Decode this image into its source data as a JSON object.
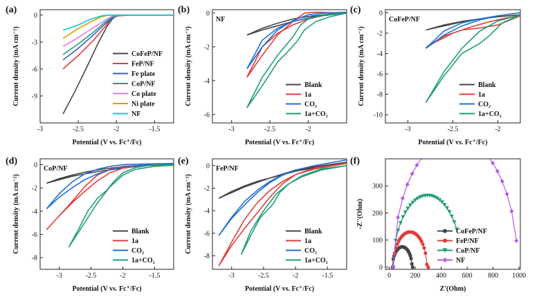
{
  "figure": {
    "panels": [
      "(a)",
      "(b)",
      "(c)",
      "(d)",
      "(e)",
      "(f)"
    ]
  },
  "chart_data": [
    {
      "panel": "(a)",
      "type": "line",
      "xlabel": "Potential (V vs. Fc⁺/Fc)",
      "ylabel": "Current density (mA cm⁻²)",
      "xlim": [
        -3.0,
        -1.25
      ],
      "ylim": [
        -12,
        0.6
      ],
      "xticks": [
        -3.0,
        -2.5,
        -2.0,
        -1.5
      ],
      "yticks": [
        0,
        -3,
        -6,
        -9
      ],
      "legend_position": "bottom-right",
      "series": [
        {
          "name": "CoFeP/NF",
          "color": "#444444",
          "x": [
            -2.7,
            -2.55,
            -2.4,
            -2.25,
            -2.12,
            -2.05,
            -2.0,
            -1.9,
            -1.7,
            -1.5,
            -1.25
          ],
          "y": [
            -11.0,
            -8.6,
            -6.0,
            -3.3,
            -1.2,
            -0.4,
            -0.1,
            0.0,
            0.0,
            0.0,
            0.0
          ]
        },
        {
          "name": "FeP/NF",
          "color": "#e03c3c",
          "x": [
            -2.7,
            -2.5,
            -2.3,
            -2.15,
            -2.07,
            -2.0,
            -1.8,
            -1.5,
            -1.25
          ],
          "y": [
            -6.0,
            -4.5,
            -2.8,
            -1.3,
            -0.4,
            -0.1,
            0.0,
            0.0,
            0.0
          ]
        },
        {
          "name": "Fe plate",
          "color": "#3a5bc7",
          "x": [
            -2.7,
            -2.5,
            -2.3,
            -2.15,
            -2.05,
            -1.95,
            -1.7,
            -1.25
          ],
          "y": [
            -5.0,
            -3.7,
            -2.2,
            -1.0,
            -0.3,
            0.0,
            0.0,
            0.0
          ]
        },
        {
          "name": "CoP/NF",
          "color": "#1f9e76",
          "x": [
            -2.7,
            -2.5,
            -2.3,
            -2.15,
            -2.05,
            -1.95,
            -1.7,
            -1.25
          ],
          "y": [
            -4.4,
            -3.2,
            -1.9,
            -0.8,
            -0.2,
            0.0,
            0.0,
            0.0
          ]
        },
        {
          "name": "Co plate",
          "color": "#e07be0",
          "x": [
            -2.7,
            -2.5,
            -2.3,
            -2.15,
            -2.05,
            -1.95,
            -1.7,
            -1.25
          ],
          "y": [
            -3.5,
            -2.5,
            -1.4,
            -0.6,
            -0.1,
            0.0,
            0.0,
            0.0
          ]
        },
        {
          "name": "Ni plate",
          "color": "#c9a600",
          "x": [
            -2.7,
            -2.5,
            -2.3,
            -2.2,
            -2.1,
            -2.0,
            -1.7,
            -1.25
          ],
          "y": [
            -2.6,
            -1.5,
            -0.6,
            -0.2,
            0.0,
            0.0,
            0.0,
            0.0
          ]
        },
        {
          "name": "NF",
          "color": "#19c3d6",
          "x": [
            -2.7,
            -2.5,
            -2.35,
            -2.2,
            -2.1,
            -2.0,
            -1.7,
            -1.25
          ],
          "y": [
            -1.7,
            -1.1,
            -0.5,
            -0.1,
            0.0,
            0.0,
            0.0,
            0.0
          ]
        }
      ]
    },
    {
      "panel": "(b)",
      "type": "line",
      "inner_label": "NF",
      "xlabel": "Potential (V vs. Fc⁺/Fc)",
      "ylabel": "Current density (mA cm⁻²)",
      "xlim": [
        -3.25,
        -1.5
      ],
      "ylim": [
        -6.5,
        0.2
      ],
      "xticks": [
        -3.0,
        -2.5,
        -2.0
      ],
      "yticks": [
        0,
        -2,
        -4,
        -6
      ],
      "legend_position": "bottom-right",
      "series": [
        {
          "name": "Blank",
          "color": "#444444",
          "x": [
            -2.8,
            -2.6,
            -2.4,
            -2.2,
            -2.0,
            -1.8,
            -1.5,
            -1.5,
            -1.8,
            -2.0,
            -2.2,
            -2.4,
            -2.6,
            -2.8
          ],
          "y": [
            -1.3,
            -0.9,
            -0.6,
            -0.35,
            -0.2,
            -0.1,
            0.05,
            0.05,
            -0.1,
            -0.3,
            -0.5,
            -0.75,
            -1.0,
            -1.3
          ]
        },
        {
          "name": "1a",
          "color": "#e03c3c",
          "x": [
            -2.8,
            -2.6,
            -2.4,
            -2.2,
            -2.05,
            -1.9,
            -1.5,
            -1.5,
            -1.8,
            -2.0,
            -2.2,
            -2.4,
            -2.6,
            -2.8
          ],
          "y": [
            -3.8,
            -2.5,
            -1.3,
            -0.5,
            0.0,
            0.05,
            0.0,
            0.0,
            -0.15,
            -0.35,
            -0.7,
            -1.2,
            -2.0,
            -3.8
          ]
        },
        {
          "name": "CO₂",
          "color": "#1f6ed4",
          "x": [
            -2.8,
            -2.6,
            -2.4,
            -2.2,
            -2.0,
            -1.8,
            -1.5,
            -1.5,
            -1.8,
            -2.0,
            -2.2,
            -2.4,
            -2.6,
            -2.8
          ],
          "y": [
            -3.3,
            -2.0,
            -1.0,
            -0.45,
            -0.1,
            0.0,
            0.05,
            0.05,
            -0.15,
            -0.3,
            -0.5,
            -0.9,
            -1.6,
            -3.3
          ]
        },
        {
          "name": "1a+CO₂",
          "color": "#1f9e76",
          "x": [
            -2.8,
            -2.6,
            -2.4,
            -2.25,
            -2.15,
            -2.05,
            -1.9,
            -1.7,
            -1.5,
            -1.5,
            -1.8,
            -2.0,
            -2.1,
            -2.2,
            -2.4,
            -2.6,
            -2.8
          ],
          "y": [
            -5.6,
            -4.3,
            -2.9,
            -2.2,
            -1.7,
            -1.0,
            -0.5,
            -0.2,
            0.0,
            0.0,
            -0.1,
            -0.35,
            -0.7,
            -1.4,
            -2.5,
            -3.8,
            -5.6
          ]
        }
      ]
    },
    {
      "panel": "(c)",
      "type": "line",
      "inner_label": "CoFeP/NF",
      "xlabel": "Potential (V vs. Fc⁺/Fc)",
      "ylabel": "Current density (mA cm⁻²)",
      "xlim": [
        -3.25,
        -1.75
      ],
      "ylim": [
        -10.8,
        0.3
      ],
      "xticks": [
        -3.0,
        -2.5,
        -2.0
      ],
      "yticks": [
        0,
        -2,
        -4,
        -6,
        -8,
        -10
      ],
      "legend_position": "bottom-right",
      "series": [
        {
          "name": "Blank",
          "color": "#444444",
          "x": [
            -2.8,
            -2.6,
            -2.4,
            -2.2,
            -2.0,
            -1.75,
            -1.75,
            -2.0,
            -2.2,
            -2.4,
            -2.6,
            -2.8
          ],
          "y": [
            -1.7,
            -1.2,
            -0.85,
            -0.6,
            -0.4,
            -0.2,
            -0.2,
            -0.4,
            -0.6,
            -0.9,
            -1.3,
            -1.7
          ]
        },
        {
          "name": "1a",
          "color": "#e03c3c",
          "x": [
            -2.8,
            -2.6,
            -2.4,
            -2.2,
            -2.0,
            -1.75,
            -1.75,
            -1.9,
            -2.1,
            -2.3,
            -2.5,
            -2.7,
            -2.8
          ],
          "y": [
            -3.4,
            -2.3,
            -1.7,
            -1.5,
            -1.2,
            -0.3,
            -0.3,
            -0.5,
            -0.9,
            -1.4,
            -2.0,
            -2.9,
            -3.4
          ]
        },
        {
          "name": "CO₂",
          "color": "#1f6ed4",
          "x": [
            -2.8,
            -2.6,
            -2.4,
            -2.2,
            -2.0,
            -1.75,
            -1.75,
            -2.0,
            -2.2,
            -2.4,
            -2.6,
            -2.8
          ],
          "y": [
            -3.5,
            -2.2,
            -1.3,
            -0.7,
            -0.3,
            0.0,
            0.0,
            -0.3,
            -0.6,
            -1.0,
            -1.8,
            -3.5
          ]
        },
        {
          "name": "1a+CO₂",
          "color": "#1f9e76",
          "x": [
            -2.8,
            -2.6,
            -2.4,
            -2.2,
            -2.1,
            -1.95,
            -1.75,
            -1.75,
            -2.0,
            -2.2,
            -2.4,
            -2.6,
            -2.8
          ],
          "y": [
            -8.8,
            -6.2,
            -4.0,
            -3.0,
            -2.3,
            -1.0,
            -0.2,
            -0.2,
            -0.8,
            -1.8,
            -3.5,
            -5.8,
            -8.8
          ]
        }
      ]
    },
    {
      "panel": "(d)",
      "type": "line",
      "inner_label": "CoP/NF",
      "xlabel": "Potential (V vs. Fc⁺/Fc)",
      "ylabel": "Current density (mA cm⁻²)",
      "xlim": [
        -3.3,
        -1.2
      ],
      "ylim": [
        -9,
        0.5
      ],
      "xticks": [
        -3.0,
        -2.5,
        -2.0,
        -1.5
      ],
      "yticks": [
        0,
        -2,
        -4,
        -6,
        -8
      ],
      "legend_position": "bottom-right",
      "series": [
        {
          "name": "Blank",
          "color": "#444444",
          "x": [
            -3.2,
            -3.0,
            -2.8,
            -2.6,
            -2.4,
            -2.2,
            -2.0,
            -1.7,
            -1.2,
            -1.2,
            -1.7,
            -2.0,
            -2.2,
            -2.4,
            -2.6,
            -2.8,
            -3.0,
            -3.2
          ],
          "y": [
            -1.6,
            -1.2,
            -0.9,
            -0.65,
            -0.45,
            -0.3,
            -0.18,
            -0.1,
            0.0,
            0.0,
            -0.1,
            -0.3,
            -0.45,
            -0.6,
            -0.8,
            -1.0,
            -1.3,
            -1.6
          ]
        },
        {
          "name": "1a",
          "color": "#e03c3c",
          "x": [
            -3.2,
            -3.0,
            -2.8,
            -2.6,
            -2.4,
            -2.2,
            -2.0,
            -1.7,
            -1.2,
            -1.2,
            -1.7,
            -2.0,
            -2.2,
            -2.4,
            -2.6,
            -2.8,
            -3.0,
            -3.2
          ],
          "y": [
            -5.6,
            -4.4,
            -3.2,
            -1.9,
            -0.9,
            -0.4,
            -0.15,
            -0.05,
            0.05,
            0.05,
            -0.1,
            -0.3,
            -0.7,
            -1.4,
            -2.3,
            -3.3,
            -4.4,
            -5.6
          ]
        },
        {
          "name": "CO₂",
          "color": "#1f6ed4",
          "x": [
            -3.2,
            -3.0,
            -2.8,
            -2.6,
            -2.4,
            -2.2,
            -2.0,
            -1.7,
            -1.2,
            -1.2,
            -1.7,
            -2.0,
            -2.2,
            -2.4,
            -2.6,
            -2.8,
            -3.0,
            -3.2
          ],
          "y": [
            -3.8,
            -2.5,
            -1.5,
            -0.8,
            -0.4,
            -0.15,
            0.0,
            0.05,
            0.1,
            0.1,
            -0.05,
            -0.2,
            -0.45,
            -0.8,
            -1.3,
            -2.0,
            -2.8,
            -3.8
          ]
        },
        {
          "name": "1a+CO₂",
          "color": "#1f9e76",
          "x": [
            -2.85,
            -2.7,
            -2.55,
            -2.4,
            -2.25,
            -2.15,
            -2.0,
            -1.8,
            -1.5,
            -1.2,
            -1.2,
            -1.5,
            -1.8,
            -2.0,
            -2.2,
            -2.4,
            -2.6,
            -2.85
          ],
          "y": [
            -7.1,
            -5.6,
            -4.0,
            -2.9,
            -2.2,
            -1.5,
            -0.7,
            -0.25,
            0.0,
            0.0,
            -0.05,
            -0.15,
            -0.4,
            -0.9,
            -1.9,
            -3.3,
            -5.0,
            -7.1
          ]
        }
      ]
    },
    {
      "panel": "(e)",
      "type": "line",
      "inner_label": "FeP/NF",
      "xlabel": "Potential (V vs. Fc⁺/Fc)",
      "ylabel": "Current density (mA cm⁻²)",
      "xlim": [
        -3.3,
        -1.2
      ],
      "ylim": [
        -9.2,
        0.6
      ],
      "xticks": [
        -3.0,
        -2.5,
        -2.0,
        -1.5
      ],
      "yticks": [
        0,
        -2,
        -4,
        -6,
        -8
      ],
      "legend_position": "bottom-right",
      "series": [
        {
          "name": "Blank",
          "color": "#444444",
          "x": [
            -3.2,
            -3.0,
            -2.8,
            -2.6,
            -2.4,
            -2.2,
            -2.0,
            -1.7,
            -1.2,
            -1.2,
            -1.7,
            -2.0,
            -2.2,
            -2.4,
            -2.6,
            -2.8,
            -3.0,
            -3.2
          ],
          "y": [
            -2.9,
            -2.3,
            -1.8,
            -1.4,
            -1.1,
            -0.8,
            -0.5,
            -0.2,
            0.3,
            0.3,
            -0.1,
            -0.4,
            -0.75,
            -1.1,
            -1.5,
            -1.9,
            -2.4,
            -2.9
          ]
        },
        {
          "name": "1a",
          "color": "#e03c3c",
          "x": [
            -3.2,
            -3.0,
            -2.8,
            -2.6,
            -2.4,
            -2.2,
            -2.0,
            -1.7,
            -1.2,
            -1.2,
            -1.7,
            -2.0,
            -2.2,
            -2.4,
            -2.6,
            -2.8,
            -3.0,
            -3.2
          ],
          "y": [
            -8.9,
            -6.8,
            -4.8,
            -3.3,
            -2.2,
            -1.4,
            -0.8,
            -0.3,
            0.2,
            0.2,
            -0.2,
            -0.8,
            -1.6,
            -2.8,
            -4.2,
            -5.6,
            -7.1,
            -8.9
          ]
        },
        {
          "name": "CO₂",
          "color": "#1f6ed4",
          "x": [
            -3.2,
            -3.0,
            -2.8,
            -2.6,
            -2.4,
            -2.2,
            -2.0,
            -1.7,
            -1.2,
            -1.2,
            -1.7,
            -2.0,
            -2.2,
            -2.4,
            -2.6,
            -2.8,
            -3.0,
            -3.2
          ],
          "y": [
            -6.2,
            -4.6,
            -3.2,
            -2.2,
            -1.4,
            -0.8,
            -0.4,
            0.0,
            0.5,
            0.5,
            0.0,
            -0.4,
            -0.85,
            -1.5,
            -2.4,
            -3.5,
            -4.7,
            -6.2
          ]
        },
        {
          "name": "1a+CO₂",
          "color": "#1f9e76",
          "x": [
            -2.85,
            -2.7,
            -2.55,
            -2.45,
            -2.35,
            -2.25,
            -2.1,
            -1.9,
            -1.6,
            -1.2,
            -1.2,
            -1.6,
            -1.9,
            -2.1,
            -2.3,
            -2.5,
            -2.7,
            -2.85
          ],
          "y": [
            -7.9,
            -6.2,
            -4.6,
            -4.0,
            -3.4,
            -2.4,
            -1.6,
            -0.9,
            -0.3,
            0.0,
            0.0,
            -0.4,
            -1.0,
            -1.6,
            -2.5,
            -4.0,
            -5.8,
            -7.9
          ]
        }
      ]
    },
    {
      "panel": "(f)",
      "type": "scatter",
      "connected": true,
      "xlabel": "Z'(Ohm)",
      "ylabel": "-Z''(Ohm)",
      "xlim": [
        -30,
        1010
      ],
      "ylim": [
        -8,
        400
      ],
      "xticks": [
        0,
        200,
        400,
        600,
        800,
        1000
      ],
      "yticks": [
        0,
        100,
        200,
        300
      ],
      "legend_position": "bottom-right",
      "series": [
        {
          "name": "CoFeP/NF",
          "color": "#444444",
          "marker": "circle",
          "center": 100,
          "radius": 75,
          "end_x": 180
        },
        {
          "name": "FeP/NF",
          "color": "#e03c3c",
          "marker": "circle",
          "center": 160,
          "radius": 130,
          "end_x": 300
        },
        {
          "name": "CoP/NF",
          "color": "#1f9e76",
          "marker": "triangle-down",
          "center": 295,
          "radius": 265,
          "end_x": 520
        },
        {
          "name": "NF",
          "color": "#b659e8",
          "marker": "diamond",
          "center": 510,
          "radius": 480,
          "end_x": 980
        }
      ]
    }
  ]
}
